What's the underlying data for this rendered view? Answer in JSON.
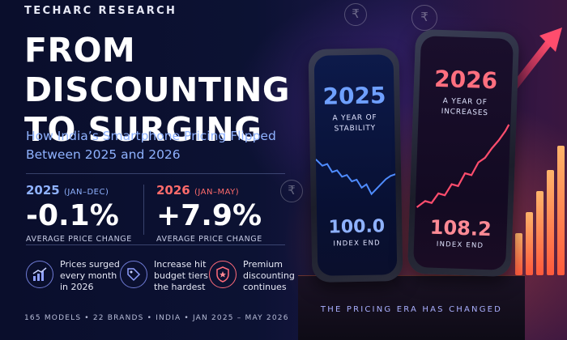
{
  "brand": "TECHARC RESEARCH",
  "title": "FROM DISCOUNTING TO SURGING",
  "subtitle": "How India’s Smartphone Pricing Flipped Between 2025 and 2026",
  "stats": [
    {
      "year": "2025",
      "range": "(JAN–DEC)",
      "value": "-0.1%",
      "caption": "AVERAGE PRICE CHANGE",
      "color": "#8fb2ff"
    },
    {
      "year": "2026",
      "range": "(JAN–MAY)",
      "value": "+7.9%",
      "caption": "AVERAGE PRICE CHANGE",
      "color": "#ff6b6b"
    }
  ],
  "points": [
    {
      "icon": "chart-up-icon",
      "text": "Prices surged every month in 2026"
    },
    {
      "icon": "price-tag-icon",
      "text": "Increase hit budget tiers the hardest"
    },
    {
      "icon": "shield-star-icon",
      "text": "Premium discounting continues"
    }
  ],
  "footer": "165 MODELS   •   22 BRANDS   •   INDIA   •   JAN 2025 – MAY 2026",
  "phones": [
    {
      "year": "2025",
      "line1": "A YEAR OF",
      "line2": "STABILITY",
      "index_value": "100.0",
      "index_label": "INDEX END",
      "color": "#4f8cff"
    },
    {
      "year": "2026",
      "line1": "A YEAR OF",
      "line2": "INCREASES",
      "index_value": "108.2",
      "index_label": "INDEX END",
      "color": "#ff5a6e"
    }
  ],
  "tagline": "THE PRICING ERA HAS CHANGED",
  "currency_symbol": "₹"
}
